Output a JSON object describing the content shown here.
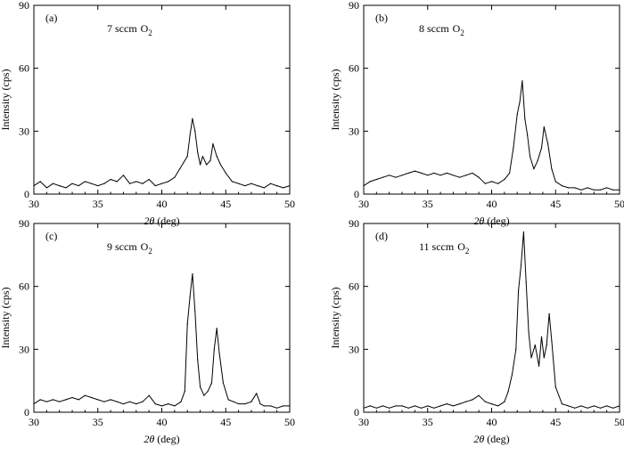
{
  "chart_data": [
    {
      "type": "line",
      "panel": "(a)",
      "condition": "7 sccm",
      "condition_chem": "O",
      "condition_sub": "2",
      "xlabel_symbol": "2θ",
      "xlabel_unit": "(deg)",
      "ylabel": "Intensity (cps)",
      "xlim": [
        30,
        50
      ],
      "ylim": [
        0,
        90
      ],
      "xticks": [
        30,
        35,
        40,
        45,
        50
      ],
      "yticks": [
        0,
        30,
        60,
        90
      ],
      "series": [
        {
          "x": [
            30,
            30.5,
            31,
            31.5,
            32,
            32.5,
            33,
            33.5,
            34,
            34.5,
            35,
            35.5,
            36,
            36.5,
            37,
            37.5,
            38,
            38.5,
            39,
            39.5,
            40,
            40.5,
            41,
            41.4,
            41.7,
            42,
            42.2,
            42.4,
            42.6,
            42.8,
            43,
            43.2,
            43.5,
            43.8,
            44,
            44.3,
            44.6,
            45,
            45.5,
            46,
            46.5,
            47,
            47.5,
            48,
            48.5,
            49,
            49.5,
            50
          ],
          "y": [
            4,
            6,
            3,
            5,
            4,
            3,
            5,
            4,
            6,
            5,
            4,
            5,
            7,
            6,
            9,
            5,
            6,
            5,
            7,
            4,
            5,
            6,
            8,
            12,
            15,
            18,
            28,
            36,
            30,
            20,
            14,
            18,
            14,
            16,
            24,
            18,
            14,
            10,
            6,
            5,
            4,
            5,
            4,
            3,
            5,
            4,
            3,
            4
          ]
        }
      ]
    },
    {
      "type": "line",
      "panel": "(b)",
      "condition": "8 sccm",
      "condition_chem": "O",
      "condition_sub": "2",
      "xlabel_symbol": "2θ",
      "xlabel_unit": "(deg)",
      "ylabel": "Intensity (cps)",
      "xlim": [
        30,
        50
      ],
      "ylim": [
        0,
        90
      ],
      "xticks": [
        30,
        35,
        40,
        45,
        50
      ],
      "yticks": [
        0,
        30,
        60,
        90
      ],
      "series": [
        {
          "x": [
            30,
            30.5,
            31,
            31.5,
            32,
            32.5,
            33,
            33.5,
            34,
            34.5,
            35,
            35.5,
            36,
            36.5,
            37,
            37.5,
            38,
            38.5,
            39,
            39.5,
            40,
            40.5,
            41,
            41.4,
            41.7,
            42,
            42.2,
            42.4,
            42.6,
            42.8,
            43,
            43.3,
            43.6,
            43.9,
            44.1,
            44.4,
            44.7,
            45,
            45.5,
            46,
            46.5,
            47,
            47.5,
            48,
            48.5,
            49,
            49.5,
            50
          ],
          "y": [
            4,
            6,
            7,
            8,
            9,
            8,
            9,
            10,
            11,
            10,
            9,
            10,
            9,
            10,
            9,
            8,
            9,
            10,
            8,
            5,
            6,
            5,
            7,
            10,
            22,
            38,
            44,
            54,
            36,
            28,
            18,
            12,
            16,
            22,
            32,
            24,
            12,
            6,
            4,
            3,
            3,
            2,
            3,
            2,
            2,
            3,
            2,
            2
          ]
        }
      ]
    },
    {
      "type": "line",
      "panel": "(c)",
      "condition": "9 sccm",
      "condition_chem": "O",
      "condition_sub": "2",
      "xlabel_symbol": "2θ",
      "xlabel_unit": "(deg)",
      "ylabel": "Intensity (cps)",
      "xlim": [
        30,
        50
      ],
      "ylim": [
        0,
        90
      ],
      "xticks": [
        30,
        35,
        40,
        45,
        50
      ],
      "yticks": [
        0,
        30,
        60,
        90
      ],
      "series": [
        {
          "x": [
            30,
            30.5,
            31,
            31.5,
            32,
            32.5,
            33,
            33.5,
            34,
            34.5,
            35,
            35.5,
            36,
            36.5,
            37,
            37.5,
            38,
            38.5,
            39,
            39.5,
            40,
            40.5,
            41,
            41.5,
            41.8,
            42,
            42.2,
            42.4,
            42.6,
            42.8,
            43,
            43.3,
            43.6,
            43.9,
            44.1,
            44.3,
            44.5,
            44.8,
            45.2,
            45.6,
            46,
            46.5,
            47,
            47.4,
            47.7,
            48,
            48.5,
            49,
            49.5,
            50
          ],
          "y": [
            4,
            6,
            5,
            6,
            5,
            6,
            7,
            6,
            8,
            7,
            6,
            5,
            6,
            5,
            4,
            5,
            4,
            5,
            8,
            4,
            3,
            4,
            3,
            5,
            10,
            42,
            55,
            66,
            48,
            25,
            12,
            8,
            10,
            14,
            30,
            40,
            28,
            14,
            6,
            5,
            4,
            4,
            5,
            9,
            4,
            3,
            3,
            2,
            3,
            3
          ]
        }
      ]
    },
    {
      "type": "line",
      "panel": "(d)",
      "condition": "11 sccm",
      "condition_chem": "O",
      "condition_sub": "2",
      "xlabel_symbol": "2θ",
      "xlabel_unit": "(deg)",
      "ylabel": "Intensity (cps)",
      "xlim": [
        30,
        50
      ],
      "ylim": [
        0,
        90
      ],
      "xticks": [
        30,
        35,
        40,
        45,
        50
      ],
      "yticks": [
        0,
        30,
        60,
        90
      ],
      "series": [
        {
          "x": [
            30,
            30.5,
            31,
            31.5,
            32,
            32.5,
            33,
            33.5,
            34,
            34.5,
            35,
            35.5,
            36,
            36.5,
            37,
            37.5,
            38,
            38.5,
            39,
            39.5,
            40,
            40.5,
            41,
            41.3,
            41.6,
            41.9,
            42.1,
            42.3,
            42.5,
            42.7,
            42.9,
            43.1,
            43.4,
            43.7,
            43.9,
            44.1,
            44.3,
            44.5,
            44.7,
            45,
            45.5,
            46,
            46.5,
            47,
            47.5,
            48,
            48.5,
            49,
            49.5,
            50
          ],
          "y": [
            2,
            3,
            2,
            3,
            2,
            3,
            3,
            2,
            3,
            2,
            3,
            2,
            3,
            4,
            3,
            4,
            5,
            6,
            8,
            5,
            4,
            3,
            5,
            10,
            18,
            30,
            58,
            70,
            86,
            62,
            38,
            26,
            32,
            22,
            36,
            26,
            32,
            47,
            34,
            12,
            4,
            3,
            2,
            3,
            2,
            3,
            2,
            3,
            2,
            3
          ]
        }
      ]
    }
  ]
}
